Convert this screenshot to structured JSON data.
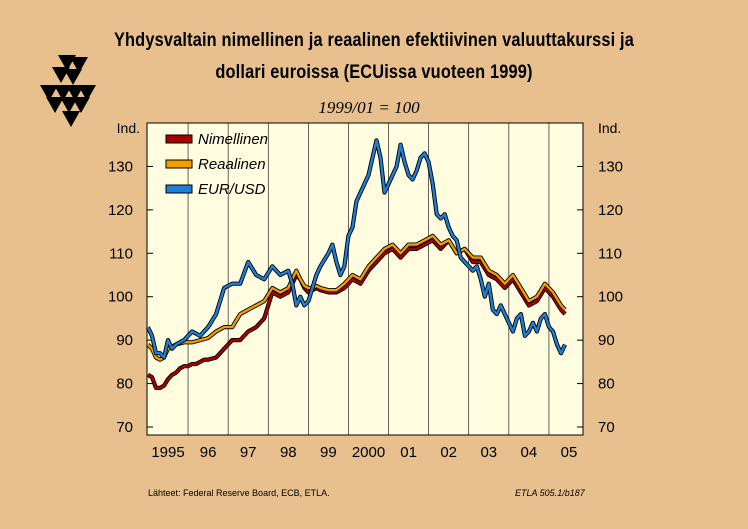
{
  "title_line1": "Yhdysvaltain nimellinen ja reaalinen efektiivinen valuuttakurssi ja",
  "title_line2": "dollari euroissa (ECUissa vuoteen 1999)",
  "subtitle": "1999/01 = 100",
  "source": "Lähteet:   Federal Reserve Board, ECB, ETLA.",
  "code": "ETLA 505.1/b187",
  "colors": {
    "background": "#e7c08e",
    "plot": "#fffce0",
    "nimellinen": "#a80000",
    "reaalinen": "#f29d00",
    "eurusd": "#1e7fd6"
  },
  "chart_data": {
    "type": "line",
    "ylabel_left": "Ind.",
    "ylabel_right": "Ind.",
    "ylim": [
      70,
      140
    ],
    "yticks": [
      70,
      80,
      90,
      100,
      110,
      120,
      130
    ],
    "xlim": [
      1994.5,
      2005.4
    ],
    "xtick_labels": [
      "1995",
      "96",
      "97",
      "98",
      "99",
      "2000",
      "01",
      "02",
      "03",
      "04",
      "05"
    ],
    "xtick_years": [
      1995,
      1996,
      1997,
      1998,
      1999,
      2000,
      2001,
      2002,
      2003,
      2004,
      2005
    ],
    "legend_position": "top-left",
    "grid": "vertical",
    "series": [
      {
        "name": "Nimellinen",
        "color_key": "nimellinen",
        "x": [
          1994.5,
          1994.6,
          1994.7,
          1994.8,
          1994.9,
          1995.0,
          1995.1,
          1995.2,
          1995.3,
          1995.4,
          1995.5,
          1995.6,
          1995.7,
          1995.8,
          1995.9,
          1996.0,
          1996.2,
          1996.4,
          1996.6,
          1996.8,
          1997.0,
          1997.2,
          1997.4,
          1997.6,
          1997.8,
          1998.0,
          1998.1,
          1998.2,
          1998.3,
          1998.4,
          1998.5,
          1998.6,
          1998.7,
          1998.8,
          1999.0,
          1999.2,
          1999.4,
          1999.6,
          1999.8,
          2000.0,
          2000.2,
          2000.4,
          2000.6,
          2000.8,
          2001.0,
          2001.2,
          2001.4,
          2001.6,
          2001.8,
          2002.0,
          2002.2,
          2002.4,
          2002.6,
          2002.8,
          2003.0,
          2003.2,
          2003.4,
          2003.6,
          2003.8,
          2004.0,
          2004.2,
          2004.4,
          2004.6,
          2004.8,
          2004.9
        ],
        "values": [
          82,
          81.5,
          79,
          79,
          79.5,
          81,
          82,
          82.5,
          83.5,
          84,
          84,
          84.5,
          84.5,
          85,
          85.5,
          85.5,
          86,
          88,
          90,
          90,
          92,
          93,
          95,
          101,
          100,
          101,
          103,
          105,
          104,
          102,
          101,
          101.5,
          102,
          101.5,
          101,
          101,
          102,
          104,
          103,
          106,
          108,
          110,
          111,
          109,
          111,
          111,
          112,
          113,
          111,
          113,
          110,
          111,
          108,
          108,
          105,
          104,
          102,
          104,
          101,
          98,
          99,
          102,
          100,
          97,
          96
        ]
      },
      {
        "name": "Reaalinen",
        "color_key": "reaalinen",
        "x": [
          1994.5,
          1994.6,
          1994.7,
          1994.8,
          1994.9,
          1995.0,
          1995.1,
          1995.2,
          1995.4,
          1995.6,
          1995.8,
          1996.0,
          1996.2,
          1996.4,
          1996.6,
          1996.8,
          1997.0,
          1997.2,
          1997.4,
          1997.6,
          1997.8,
          1998.0,
          1998.1,
          1998.2,
          1998.3,
          1998.4,
          1998.5,
          1998.6,
          1998.7,
          1998.8,
          1999.0,
          1999.2,
          1999.4,
          1999.6,
          1999.8,
          2000.0,
          2000.2,
          2000.4,
          2000.6,
          2000.8,
          2001.0,
          2001.2,
          2001.4,
          2001.6,
          2001.8,
          2002.0,
          2002.2,
          2002.4,
          2002.6,
          2002.8,
          2003.0,
          2003.2,
          2003.4,
          2003.6,
          2003.8,
          2004.0,
          2004.2,
          2004.4,
          2004.6,
          2004.8,
          2004.9
        ],
        "values": [
          89,
          88,
          86,
          85.5,
          86,
          88,
          88.5,
          89,
          89.5,
          89.5,
          90,
          90.5,
          92,
          93,
          93,
          96,
          97,
          98,
          99,
          102,
          101,
          102,
          104,
          106,
          104,
          102.5,
          102,
          102,
          102.5,
          102,
          101.5,
          101.5,
          103,
          105,
          104,
          107,
          109,
          111,
          112,
          110,
          112,
          112,
          113,
          114,
          112,
          113,
          110,
          111,
          109,
          109,
          106,
          105,
          103,
          105,
          102,
          99,
          100,
          103,
          101,
          98,
          97
        ]
      },
      {
        "name": "EUR/USD",
        "color_key": "eurusd",
        "x": [
          1994.5,
          1994.6,
          1994.7,
          1994.8,
          1994.9,
          1995.0,
          1995.1,
          1995.2,
          1995.4,
          1995.6,
          1995.8,
          1996.0,
          1996.2,
          1996.4,
          1996.6,
          1996.8,
          1997.0,
          1997.2,
          1997.4,
          1997.6,
          1997.8,
          1998.0,
          1998.1,
          1998.2,
          1998.3,
          1998.4,
          1998.5,
          1998.6,
          1998.7,
          1998.8,
          1999.0,
          1999.1,
          1999.2,
          1999.3,
          1999.4,
          1999.5,
          1999.6,
          1999.7,
          1999.8,
          2000.0,
          2000.1,
          2000.2,
          2000.3,
          2000.4,
          2000.5,
          2000.6,
          2000.7,
          2000.8,
          2000.9,
          2001.0,
          2001.1,
          2001.2,
          2001.3,
          2001.4,
          2001.5,
          2001.6,
          2001.7,
          2001.8,
          2001.9,
          2002.0,
          2002.1,
          2002.2,
          2002.3,
          2002.4,
          2002.5,
          2002.6,
          2002.7,
          2002.8,
          2002.9,
          2003.0,
          2003.1,
          2003.2,
          2003.3,
          2003.4,
          2003.5,
          2003.6,
          2003.7,
          2003.8,
          2003.9,
          2004.0,
          2004.1,
          2004.2,
          2004.3,
          2004.4,
          2004.5,
          2004.6,
          2004.7,
          2004.8,
          2004.9
        ],
        "values": [
          93,
          91,
          87,
          87,
          86,
          90,
          88,
          89,
          90,
          92,
          91,
          93,
          96,
          102,
          103,
          103,
          108,
          105,
          104,
          107,
          105,
          106,
          103,
          98,
          100,
          98,
          99,
          102,
          105,
          107,
          110,
          112,
          108,
          105,
          107,
          114,
          116,
          122,
          124,
          128,
          132,
          136,
          132,
          124,
          126,
          128,
          130,
          135,
          131,
          128,
          127,
          129,
          132,
          133,
          131,
          126,
          119,
          118,
          119,
          116,
          114,
          113,
          109,
          108,
          107,
          106,
          107,
          104,
          100,
          103,
          97,
          96,
          98,
          96,
          94,
          92,
          95,
          96,
          91,
          92,
          94,
          92,
          95,
          96,
          93,
          92,
          89,
          87,
          89
        ]
      }
    ]
  }
}
